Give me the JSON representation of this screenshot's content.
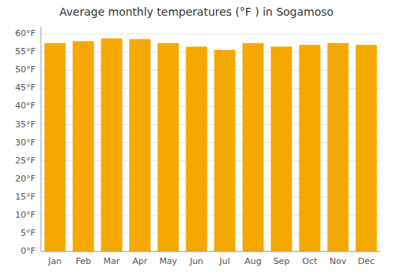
{
  "chart_data": {
    "type": "bar",
    "title": "Average monthly temperatures (°F ) in Sogamoso",
    "categories": [
      "Jan",
      "Feb",
      "Mar",
      "Apr",
      "May",
      "Jun",
      "Jul",
      "Aug",
      "Sep",
      "Oct",
      "Nov",
      "Dec"
    ],
    "values": [
      57.5,
      58.0,
      58.8,
      58.6,
      57.5,
      56.5,
      55.6,
      57.5,
      56.5,
      57.0,
      57.5,
      57.0
    ],
    "color": "#F5A800",
    "ylim": [
      0,
      62
    ],
    "yticks": [
      {
        "value": 0,
        "label": "0°F"
      },
      {
        "value": 5,
        "label": "5°F"
      },
      {
        "value": 10,
        "label": "10°F"
      },
      {
        "value": 15,
        "label": "15°F"
      },
      {
        "value": 20,
        "label": "20°F"
      },
      {
        "value": 25,
        "label": "25°F"
      },
      {
        "value": 30,
        "label": "30°F"
      },
      {
        "value": 35,
        "label": "35°F"
      },
      {
        "value": 40,
        "label": "40°F"
      },
      {
        "value": 45,
        "label": "45°F"
      },
      {
        "value": 50,
        "label": "50°F"
      },
      {
        "value": 55,
        "label": "55°F"
      },
      {
        "value": 60,
        "label": "60°F"
      }
    ],
    "grid": true
  }
}
